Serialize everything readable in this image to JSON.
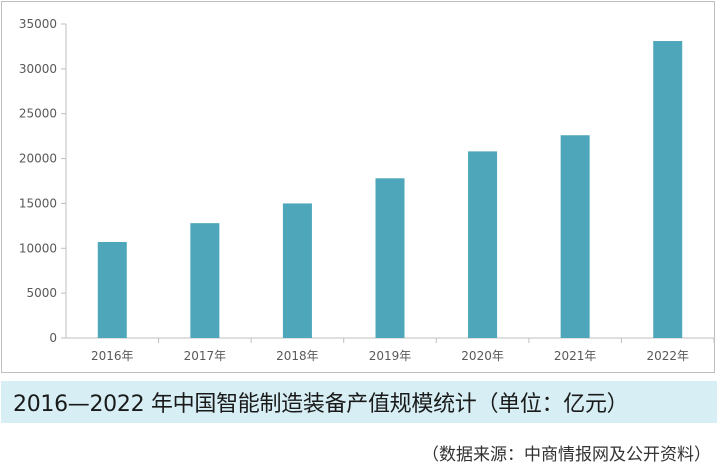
{
  "chart_data": {
    "type": "bar",
    "categories": [
      "2016年",
      "2017年",
      "2018年",
      "2019年",
      "2020年",
      "2021年",
      "2022年"
    ],
    "values": [
      10700,
      12800,
      15000,
      17800,
      20800,
      22600,
      33100
    ],
    "title": "",
    "xlabel": "",
    "ylabel": "",
    "ylim": [
      0,
      35000
    ],
    "yticks": [
      "0",
      "5000",
      "10000",
      "15000",
      "20000",
      "25000",
      "30000",
      "35000"
    ],
    "grid": false,
    "legend": "none",
    "bar_color": "#4da6b9"
  },
  "caption": {
    "text": "2016—2022 年中国智能制造装备产值规模统计（单位：亿元）",
    "background": "#d6eef4"
  },
  "source_note": "（数据来源：中商情报网及公开资料）"
}
